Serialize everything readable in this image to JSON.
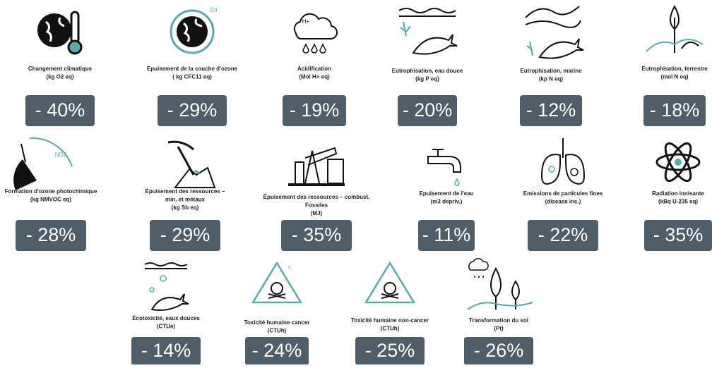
{
  "items": [
    {
      "lines": [
        "Changement climatique",
        "(kg O2 eq)"
      ],
      "badge": "- 40%"
    },
    {
      "lines": [
        "Epuisement de la couche d'ozone",
        "( kg CFC11 eq)"
      ],
      "badge": "- 29%",
      "icon_text": "O3"
    },
    {
      "lines": [
        "Acidification",
        "(Mol H+ eq)"
      ],
      "badge": "- 19%",
      "icon_text": "H+"
    },
    {
      "lines": [
        "Eutrophisation, eau douce",
        "(kg P eq)"
      ],
      "badge": "- 20%"
    },
    {
      "lines": [
        "Eutrophisation, marine",
        "(kp N eq)"
      ],
      "badge": "- 12%"
    },
    {
      "lines": [
        "Eutrophisation, terrestre",
        "(mol N eq)"
      ],
      "badge": "- 18%"
    },
    {
      "lines": [
        "Formation d'ozone photochimique",
        "(kg NMVOC eq)"
      ],
      "badge": "- 28%",
      "icon_text": "NO2"
    },
    {
      "lines": [
        "Épuisement des ressources –",
        "min. et métaux",
        "(kg Sb eq)"
      ],
      "badge": "- 29%"
    },
    {
      "lines": [
        "Épuisement des ressources – combust.",
        "Fossiles",
        "(MJ)"
      ],
      "badge": "- 35%"
    },
    {
      "lines": [
        "Epuisement de l'eau",
        "(m3 depriv.)"
      ],
      "badge": "- 11%"
    },
    {
      "lines": [
        "Emissions de particules fines",
        "(disease inc.)"
      ],
      "badge": "- 22%"
    },
    {
      "lines": [
        "Radiation ionisante",
        "(kBq U-235 eq)"
      ],
      "badge": "- 35%"
    },
    {
      "lines": [
        "Écotoxicité, eaux douces",
        "(CTUe)"
      ],
      "badge": "- 14%"
    },
    {
      "lines": [
        "Toxicité humaine cancer",
        "(CTUh)"
      ],
      "badge": "- 24%",
      "icon_text": "c"
    },
    {
      "lines": [
        "Toxicité humaine non-cancer",
        "(CTUh)"
      ],
      "badge": "- 25%"
    },
    {
      "lines": [
        "Transformation du sol",
        "(Pt)"
      ],
      "badge": "- 26%"
    }
  ]
}
